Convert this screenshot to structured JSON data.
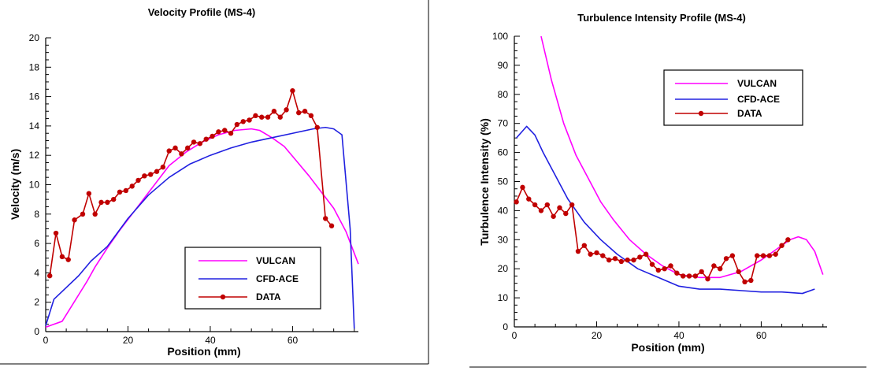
{
  "chart_data": [
    {
      "type": "line",
      "title": "Velocity Profile (MS-4)",
      "xlabel": "Position (mm)",
      "ylabel": "Velocity (m/s)",
      "xlim": [
        0,
        76
      ],
      "ylim": [
        0,
        20
      ],
      "x_ticks": [
        "0",
        "20",
        "40",
        "60"
      ],
      "y_ticks": [
        "0",
        "2",
        "4",
        "6",
        "8",
        "10",
        "12",
        "14",
        "16",
        "18",
        "20"
      ],
      "grid": false,
      "legend_position": "bottom-right",
      "series": [
        {
          "name": "VULCAN",
          "color": "#ff00ff",
          "markers": false,
          "points": [
            [
              0,
              0.3
            ],
            [
              2,
              0.5
            ],
            [
              4,
              0.7
            ],
            [
              6,
              1.6
            ],
            [
              8,
              2.5
            ],
            [
              10,
              3.4
            ],
            [
              12,
              4.4
            ],
            [
              15,
              5.7
            ],
            [
              18,
              6.9
            ],
            [
              21,
              8.0
            ],
            [
              24,
              9.1
            ],
            [
              27,
              10.2
            ],
            [
              30,
              11.3
            ],
            [
              34,
              12.2
            ],
            [
              38,
              12.9
            ],
            [
              42,
              13.4
            ],
            [
              46,
              13.7
            ],
            [
              50,
              13.8
            ],
            [
              52,
              13.7
            ],
            [
              55,
              13.2
            ],
            [
              58,
              12.6
            ],
            [
              61,
              11.6
            ],
            [
              64,
              10.6
            ],
            [
              67,
              9.5
            ],
            [
              70,
              8.4
            ],
            [
              73,
              6.8
            ],
            [
              76,
              4.6
            ]
          ]
        },
        {
          "name": "CFD-ACE",
          "color": "#2020e0",
          "markers": false,
          "points": [
            [
              0,
              0.4
            ],
            [
              2,
              2.2
            ],
            [
              5,
              3.0
            ],
            [
              8,
              3.8
            ],
            [
              11,
              4.8
            ],
            [
              15,
              5.8
            ],
            [
              20,
              7.7
            ],
            [
              25,
              9.3
            ],
            [
              30,
              10.5
            ],
            [
              35,
              11.4
            ],
            [
              40,
              12.0
            ],
            [
              45,
              12.5
            ],
            [
              50,
              12.9
            ],
            [
              55,
              13.2
            ],
            [
              60,
              13.5
            ],
            [
              65,
              13.8
            ],
            [
              68,
              13.9
            ],
            [
              70,
              13.8
            ],
            [
              72,
              13.4
            ],
            [
              74,
              7.0
            ],
            [
              75,
              0.2
            ]
          ]
        },
        {
          "name": "DATA",
          "color": "#c00000",
          "markers": true,
          "points": [
            [
              1,
              3.8
            ],
            [
              2.5,
              6.7
            ],
            [
              4,
              5.1
            ],
            [
              5.5,
              4.9
            ],
            [
              7,
              7.6
            ],
            [
              9,
              8.0
            ],
            [
              10.5,
              9.4
            ],
            [
              12,
              8.0
            ],
            [
              13.5,
              8.8
            ],
            [
              15,
              8.8
            ],
            [
              16.5,
              9.0
            ],
            [
              18,
              9.5
            ],
            [
              19.5,
              9.6
            ],
            [
              21,
              9.9
            ],
            [
              22.5,
              10.3
            ],
            [
              24,
              10.6
            ],
            [
              25.5,
              10.7
            ],
            [
              27,
              10.9
            ],
            [
              28.5,
              11.2
            ],
            [
              30,
              12.3
            ],
            [
              31.5,
              12.5
            ],
            [
              33,
              12.1
            ],
            [
              34.5,
              12.5
            ],
            [
              36,
              12.9
            ],
            [
              37.5,
              12.8
            ],
            [
              39,
              13.1
            ],
            [
              40.5,
              13.3
            ],
            [
              42,
              13.6
            ],
            [
              43.5,
              13.7
            ],
            [
              45,
              13.5
            ],
            [
              46.5,
              14.1
            ],
            [
              48,
              14.3
            ],
            [
              49.5,
              14.4
            ],
            [
              51,
              14.7
            ],
            [
              52.5,
              14.6
            ],
            [
              54,
              14.6
            ],
            [
              55.5,
              15.0
            ],
            [
              57,
              14.6
            ],
            [
              58.5,
              15.1
            ],
            [
              60,
              16.4
            ],
            [
              61.5,
              14.9
            ],
            [
              63,
              15.0
            ],
            [
              64.5,
              14.7
            ],
            [
              66,
              13.9
            ],
            [
              68,
              7.7
            ],
            [
              69.5,
              7.2
            ]
          ]
        }
      ]
    },
    {
      "type": "line",
      "title": "Turbulence Intensity Profile (MS-4)",
      "xlabel": "Position (mm)",
      "ylabel": "Turbulence Intensity (%)",
      "xlim": [
        0,
        76
      ],
      "ylim": [
        0,
        100
      ],
      "x_ticks": [
        "0",
        "20",
        "40",
        "60"
      ],
      "y_ticks": [
        "0",
        "10",
        "20",
        "30",
        "40",
        "50",
        "60",
        "70",
        "80",
        "90",
        "100"
      ],
      "grid": false,
      "legend_position": "top-right",
      "series": [
        {
          "name": "VULCAN",
          "color": "#ff00ff",
          "markers": false,
          "points": [
            [
              6.5,
              100
            ],
            [
              9,
              85
            ],
            [
              12,
              70
            ],
            [
              15,
              59
            ],
            [
              18,
              51
            ],
            [
              21,
              43
            ],
            [
              24,
              37
            ],
            [
              28,
              30
            ],
            [
              32,
              25
            ],
            [
              36,
              21
            ],
            [
              40,
              18
            ],
            [
              45,
              17
            ],
            [
              50,
              17
            ],
            [
              55,
              19
            ],
            [
              60,
              23
            ],
            [
              64,
              27
            ],
            [
              67,
              30
            ],
            [
              69,
              31
            ],
            [
              71,
              30
            ],
            [
              73,
              26
            ],
            [
              75,
              18
            ]
          ]
        },
        {
          "name": "CFD-ACE",
          "color": "#2020e0",
          "markers": false,
          "points": [
            [
              0.5,
              65
            ],
            [
              3,
              69
            ],
            [
              5,
              66
            ],
            [
              7,
              60
            ],
            [
              10,
              52
            ],
            [
              13,
              44
            ],
            [
              17,
              36
            ],
            [
              21,
              30
            ],
            [
              25,
              25
            ],
            [
              30,
              20
            ],
            [
              35,
              17
            ],
            [
              40,
              14
            ],
            [
              45,
              13
            ],
            [
              50,
              13
            ],
            [
              55,
              12.5
            ],
            [
              60,
              12
            ],
            [
              65,
              12
            ],
            [
              70,
              11.5
            ],
            [
              73,
              13
            ]
          ]
        },
        {
          "name": "DATA",
          "color": "#c00000",
          "markers": true,
          "points": [
            [
              0.5,
              43
            ],
            [
              2,
              48
            ],
            [
              3.5,
              44
            ],
            [
              5,
              42
            ],
            [
              6.5,
              40
            ],
            [
              8,
              42
            ],
            [
              9.5,
              38
            ],
            [
              11,
              41
            ],
            [
              12.5,
              39
            ],
            [
              14,
              42
            ],
            [
              15.5,
              26
            ],
            [
              17,
              28
            ],
            [
              18.5,
              25
            ],
            [
              20,
              25.5
            ],
            [
              21.5,
              24.5
            ],
            [
              23,
              23
            ],
            [
              24.5,
              23.5
            ],
            [
              26,
              22.5
            ],
            [
              27.5,
              23
            ],
            [
              29,
              23
            ],
            [
              30.5,
              24
            ],
            [
              32,
              25
            ],
            [
              33.5,
              21.5
            ],
            [
              35,
              19.5
            ],
            [
              36.5,
              20
            ],
            [
              38,
              21
            ],
            [
              39.5,
              18.5
            ],
            [
              41,
              17.5
            ],
            [
              42.5,
              17.5
            ],
            [
              44,
              17.5
            ],
            [
              45.5,
              19
            ],
            [
              47,
              16.5
            ],
            [
              48.5,
              21
            ],
            [
              50,
              20
            ],
            [
              51.5,
              23.5
            ],
            [
              53,
              24.5
            ],
            [
              54.5,
              19
            ],
            [
              56,
              15.5
            ],
            [
              57.5,
              16
            ],
            [
              59,
              24.5
            ],
            [
              60.5,
              24.5
            ],
            [
              62,
              24.5
            ],
            [
              63.5,
              25
            ],
            [
              65,
              28
            ],
            [
              66.5,
              30
            ]
          ]
        }
      ]
    }
  ]
}
